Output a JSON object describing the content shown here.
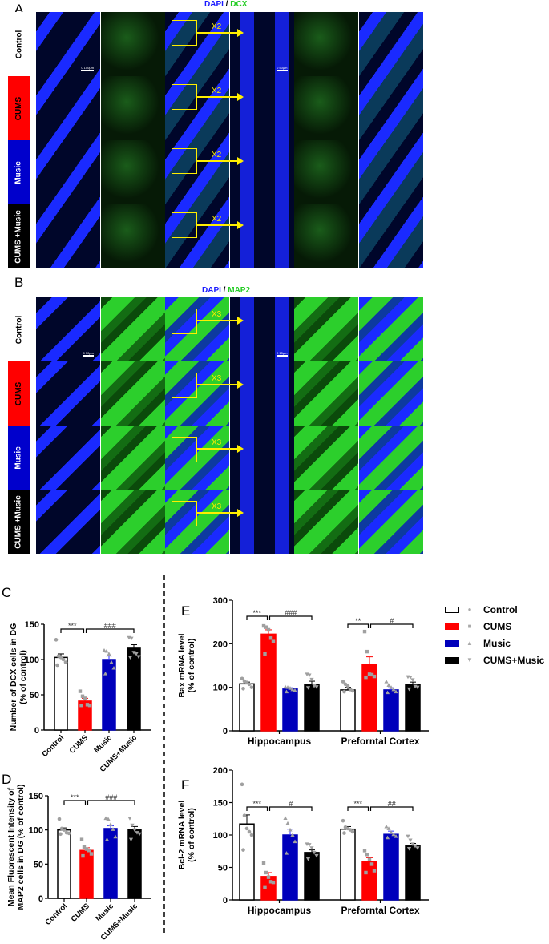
{
  "panelA": {
    "letter": "A",
    "stain_a": "DAPI",
    "sep": " / ",
    "stain_b": "DCX",
    "zoom_label": "X2",
    "scale1": "0  100µm",
    "scale2": "0  50µm",
    "rows": [
      {
        "label": "Control",
        "color": "#ffffff",
        "text": "#000000"
      },
      {
        "label": "CUMS",
        "color": "#ff0000",
        "text": "#000000"
      },
      {
        "label": "Music",
        "color": "#0000cc",
        "text": "#ffffff"
      },
      {
        "label": "CUMS +Music",
        "color": "#000000",
        "text": "#ffffff"
      }
    ]
  },
  "panelB": {
    "letter": "B",
    "stain_a": "DAPI",
    "sep": " / ",
    "stain_b": "MAP2",
    "zoom_label": "X3",
    "scale1": "0  50µm",
    "scale2": "0  15µm",
    "rows": [
      {
        "label": "Control",
        "color": "#ffffff",
        "text": "#000000"
      },
      {
        "label": "CUMS",
        "color": "#ff0000",
        "text": "#000000"
      },
      {
        "label": "Music",
        "color": "#0000cc",
        "text": "#ffffff"
      },
      {
        "label": "CUMS +Music",
        "color": "#000000",
        "text": "#ffffff"
      }
    ]
  },
  "colors": {
    "dapi": "#1a1aff",
    "dcx": "#22cc22",
    "yellow": "#ffee00",
    "Control": "#ffffff",
    "CUMS": "#ff0000",
    "Music": "#0000bb",
    "CUMS+Music": "#000000",
    "points": "#a0a0a0"
  },
  "legend": [
    {
      "label": "Control",
      "marker": "circle"
    },
    {
      "label": "CUMS",
      "marker": "square"
    },
    {
      "label": "Music",
      "marker": "triangle-up"
    },
    {
      "label": "CUMS+Music",
      "marker": "triangle-down"
    }
  ],
  "chart_data": [
    {
      "panel": "C",
      "type": "bar",
      "ylabel": "Number of DCX cells in DG (% of control)",
      "ylim": [
        0,
        150
      ],
      "yticks": [
        0,
        50,
        100,
        150
      ],
      "categories": [
        "Control",
        "CUMS",
        "Music",
        "CUMS+Music"
      ],
      "values": [
        103,
        41,
        100,
        116
      ],
      "sem": [
        5,
        4,
        5,
        5
      ],
      "points": [
        [
          128,
          105,
          103,
          100,
          96,
          92
        ],
        [
          55,
          48,
          45,
          36,
          35,
          35
        ],
        [
          113,
          112,
          108,
          96,
          88,
          80
        ],
        [
          131,
          130,
          110,
          108,
          104,
          103
        ]
      ],
      "significance": [
        {
          "label": "***",
          "from": 0,
          "to": 1
        },
        {
          "label": "###",
          "from": 1,
          "to": 3
        }
      ]
    },
    {
      "panel": "D",
      "type": "bar",
      "ylabel": "Mean Fluorescent Intensity of MAP2 cells in DG (% of control)",
      "ylim": [
        0,
        150
      ],
      "yticks": [
        0,
        50,
        100,
        150
      ],
      "categories": [
        "Control",
        "CUMS",
        "Music",
        "CUMS+Music"
      ],
      "values": [
        100,
        70,
        102,
        100
      ],
      "sem": [
        3,
        4,
        4,
        5
      ],
      "points": [
        [
          116,
          102,
          100,
          96,
          95,
          94
        ],
        [
          86,
          75,
          72,
          70,
          65,
          62
        ],
        [
          117,
          116,
          108,
          101,
          90,
          86
        ],
        [
          117,
          107,
          100,
          96,
          94,
          86
        ]
      ],
      "significance": [
        {
          "label": "***",
          "from": 0,
          "to": 1
        },
        {
          "label": "###",
          "from": 1,
          "to": 3
        }
      ]
    },
    {
      "panel": "E",
      "type": "bar",
      "ylabel": "Bax mRNA level (% of control)",
      "ylim": [
        0,
        300
      ],
      "yticks": [
        0,
        100,
        200,
        300
      ],
      "groups": [
        "Hippocampus",
        "Preforntal Cortex"
      ],
      "series": [
        {
          "name": "Control",
          "values": [
            108,
            94
          ],
          "sem": [
            4,
            6
          ],
          "points": [
            [
              120,
              114,
              111,
              107,
              100,
              97
            ],
            [
              113,
              107,
              103,
              95,
              92,
              90
            ]
          ]
        },
        {
          "name": "CUMS",
          "values": [
            222,
            153
          ],
          "sem": [
            10,
            17
          ],
          "points": [
            [
              241,
              238,
              232,
              213,
              205,
              177
            ],
            [
              228,
              182,
              130,
              129,
              125,
              123
            ]
          ]
        },
        {
          "name": "Music",
          "values": [
            96,
            94
          ],
          "sem": [
            3,
            5
          ],
          "points": [
            [
              101,
              100,
              98,
              95,
              93,
              90
            ],
            [
              113,
              105,
              100,
              95,
              90,
              88
            ]
          ]
        },
        {
          "name": "CUMS+Music",
          "values": [
            106,
            107
          ],
          "sem": [
            8,
            5
          ],
          "points": [
            [
              130,
              128,
              118,
              103,
              101,
              99
            ],
            [
              124,
              123,
              117,
              102,
              100,
              96
            ]
          ]
        }
      ],
      "significance": [
        [
          {
            "label": "***",
            "from": 0,
            "to": 1
          },
          {
            "label": "###",
            "from": 1,
            "to": 3
          }
        ],
        [
          {
            "label": "**",
            "from": 0,
            "to": 1
          },
          {
            "label": "#",
            "from": 1,
            "to": 3
          }
        ]
      ]
    },
    {
      "panel": "F",
      "type": "bar",
      "ylabel": "Bcl-2 mRNA level (% of control)",
      "ylim": [
        0,
        200
      ],
      "yticks": [
        0,
        50,
        100,
        150,
        200
      ],
      "groups": [
        "Hippocampus",
        "Preforntal Cortex"
      ],
      "series": [
        {
          "name": "Control",
          "values": [
            117,
            109
          ],
          "sem": [
            14,
            4
          ],
          "points": [
            [
              178,
              130,
              110,
              105,
              100,
              77
            ],
            [
              122,
              112,
              110,
              108,
              105,
              103
            ]
          ]
        },
        {
          "name": "CUMS",
          "values": [
            36,
            59
          ],
          "sem": [
            6,
            6
          ],
          "points": [
            [
              57,
              42,
              35,
              28,
              27,
              20
            ],
            [
              76,
              70,
              62,
              55,
              45,
              42
            ]
          ]
        },
        {
          "name": "Music",
          "values": [
            100,
            101
          ],
          "sem": [
            9,
            5
          ],
          "points": [
            [
              126,
              118,
              108,
              100,
              90,
              72
            ],
            [
              113,
              110,
              104,
              101,
              98,
              96
            ]
          ]
        },
        {
          "name": "CUMS+Music",
          "values": [
            73,
            83
          ],
          "sem": [
            4,
            4
          ],
          "points": [
            [
              86,
              85,
              80,
              73,
              68,
              63
            ],
            [
              98,
              92,
              86,
              83,
              80,
              79
            ]
          ]
        }
      ],
      "significance": [
        [
          {
            "label": "***",
            "from": 0,
            "to": 1
          },
          {
            "label": "#",
            "from": 1,
            "to": 3
          }
        ],
        [
          {
            "label": "***",
            "from": 0,
            "to": 1
          },
          {
            "label": "##",
            "from": 1,
            "to": 3
          }
        ]
      ]
    }
  ]
}
